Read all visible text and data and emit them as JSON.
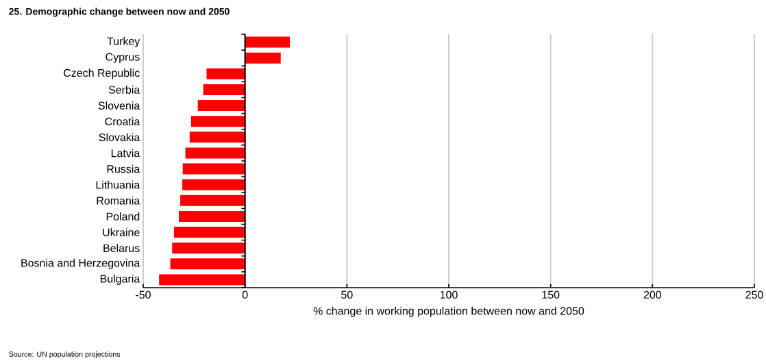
{
  "chart_data": {
    "type": "bar",
    "orientation": "horizontal",
    "title": "25. Demographic change between now and 2050",
    "xlabel": "% change in working population between now and 2050",
    "annotations": [
      "Source: UN population projections"
    ],
    "categories": [
      "Turkey",
      "Cyprus",
      "Czech Republic",
      "Serbia",
      "Slovenia",
      "Croatia",
      "Slovakia",
      "Latvia",
      "Russia",
      "Lithuania",
      "Romania",
      "Poland",
      "Ukraine",
      "Belarus",
      "Bosnia and Herzegovina",
      "Bulgaria"
    ],
    "values": [
      22.0,
      17.5,
      -18.9,
      -20.5,
      -23.2,
      -26.5,
      -27.2,
      -29.3,
      -30.6,
      -30.8,
      -31.8,
      -32.5,
      -34.9,
      -35.8,
      -36.7,
      -42.2
    ],
    "color": "#ff0000",
    "xlim": [
      -50,
      250
    ],
    "xticks": [
      -50,
      0,
      50,
      100,
      150,
      200,
      250
    ],
    "grid": "x"
  }
}
